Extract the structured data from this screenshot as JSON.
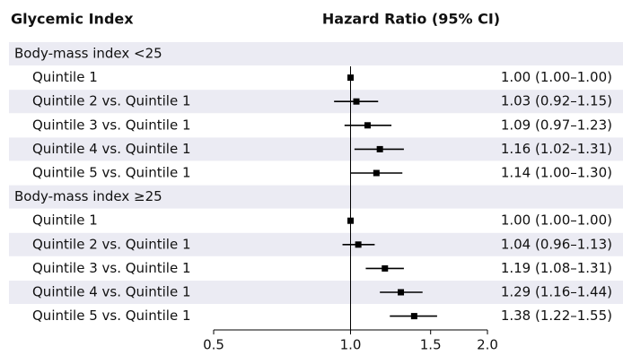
{
  "chart_data": {
    "type": "forest",
    "title": "Glycemic Index",
    "x_label": "Hazard Ratio (95% CI)",
    "xscale": "log",
    "xlim": [
      0.5,
      2.0
    ],
    "xticks": [
      0.5,
      {
        "value": 1,
        "label": "1.0"
      },
      1.5,
      {
        "value": 2,
        "label": "2.0"
      }
    ],
    "reference": 1,
    "color": "#000000",
    "shade": "#ebebf3",
    "groups": [
      {
        "name": "Body-mass index <25",
        "rows": [
          {
            "label": "Quintile 1",
            "value": 1.0,
            "lower": 1.0,
            "upper": 1.0,
            "value_label": "1.00 (1.00–1.00)"
          },
          {
            "label": "Quintile 2 vs. Quintile 1",
            "value": 1.03,
            "lower": 0.92,
            "upper": 1.15,
            "value_label": "1.03 (0.92–1.15)"
          },
          {
            "label": "Quintile 3 vs. Quintile 1",
            "value": 1.09,
            "lower": 0.97,
            "upper": 1.23,
            "value_label": "1.09 (0.97–1.23)"
          },
          {
            "label": "Quintile 4 vs. Quintile 1",
            "value": 1.16,
            "lower": 1.02,
            "upper": 1.31,
            "value_label": "1.16 (1.02–1.31)"
          },
          {
            "label": "Quintile 5 vs. Quintile 1",
            "value": 1.14,
            "lower": 1.0,
            "upper": 1.3,
            "value_label": "1.14 (1.00–1.30)"
          }
        ]
      },
      {
        "name": "Body-mass index ≥25",
        "rows": [
          {
            "label": "Quintile 1",
            "value": 1.0,
            "lower": 1.0,
            "upper": 1.0,
            "value_label": "1.00 (1.00–1.00)"
          },
          {
            "label": "Quintile 2 vs. Quintile 1",
            "value": 1.04,
            "lower": 0.96,
            "upper": 1.13,
            "value_label": "1.04 (0.96–1.13)"
          },
          {
            "label": "Quintile 3 vs. Quintile 1",
            "value": 1.19,
            "lower": 1.08,
            "upper": 1.31,
            "value_label": "1.19 (1.08–1.31)"
          },
          {
            "label": "Quintile 4 vs. Quintile 1",
            "value": 1.29,
            "lower": 1.16,
            "upper": 1.44,
            "value_label": "1.29 (1.16–1.44)"
          },
          {
            "label": "Quintile 5 vs. Quintile 1",
            "value": 1.38,
            "lower": 1.22,
            "upper": 1.55,
            "value_label": "1.38 (1.22–1.55)"
          }
        ]
      }
    ]
  }
}
